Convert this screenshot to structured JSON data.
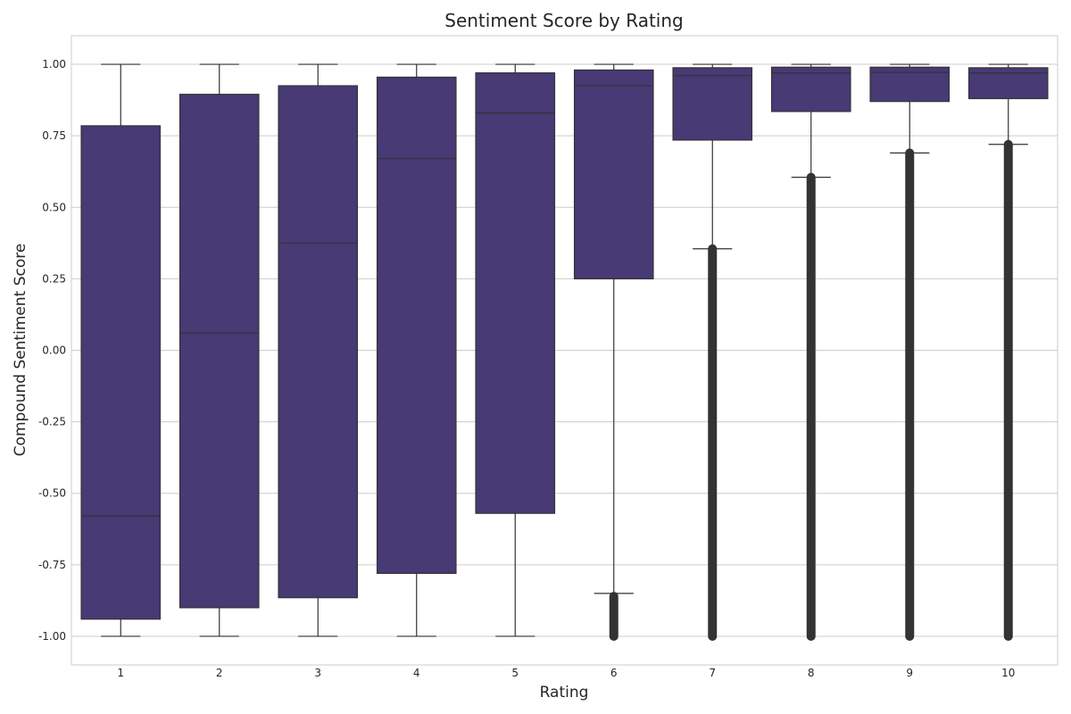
{
  "chart_data": {
    "type": "box",
    "title": "Sentiment Score by Rating",
    "xlabel": "Rating",
    "ylabel": "Compound Sentiment Score",
    "ylim": [
      -1.1,
      1.1
    ],
    "yticks": [
      "1.00",
      "0.75",
      "0.50",
      "0.25",
      "0.00",
      "-0.25",
      "-0.50",
      "-0.75",
      "-1.00"
    ],
    "ytick_values": [
      1.0,
      0.75,
      0.5,
      0.25,
      0.0,
      -0.25,
      -0.5,
      -0.75,
      -1.0
    ],
    "categories": [
      "1",
      "2",
      "3",
      "4",
      "5",
      "6",
      "7",
      "8",
      "9",
      "10"
    ],
    "grid": true,
    "box_color": "#473a75",
    "line_color": "#333333",
    "boxes": [
      {
        "category": "1",
        "whisker_low": -1.0,
        "q1": -0.94,
        "median": -0.58,
        "q3": 0.785,
        "whisker_high": 1.0,
        "outliers_low": null,
        "outliers_high": null
      },
      {
        "category": "2",
        "whisker_low": -1.0,
        "q1": -0.9,
        "median": 0.06,
        "q3": 0.895,
        "whisker_high": 1.0,
        "outliers_low": null,
        "outliers_high": null
      },
      {
        "category": "3",
        "whisker_low": -1.0,
        "q1": -0.865,
        "median": 0.375,
        "q3": 0.925,
        "whisker_high": 1.0,
        "outliers_low": null,
        "outliers_high": null
      },
      {
        "category": "4",
        "whisker_low": -1.0,
        "q1": -0.78,
        "median": 0.67,
        "q3": 0.955,
        "whisker_high": 1.0,
        "outliers_low": null,
        "outliers_high": null
      },
      {
        "category": "5",
        "whisker_low": -1.0,
        "q1": -0.57,
        "median": 0.83,
        "q3": 0.97,
        "whisker_high": 1.0,
        "outliers_low": null,
        "outliers_high": null
      },
      {
        "category": "6",
        "whisker_low": -0.85,
        "q1": 0.25,
        "median": 0.925,
        "q3": 0.98,
        "whisker_high": 1.0,
        "outliers_low": [
          -1.0,
          -0.86
        ],
        "outliers_high": null
      },
      {
        "category": "7",
        "whisker_low": 0.355,
        "q1": 0.735,
        "median": 0.96,
        "q3": 0.988,
        "whisker_high": 1.0,
        "outliers_low": [
          -1.0,
          0.355
        ],
        "outliers_high": null
      },
      {
        "category": "8",
        "whisker_low": 0.605,
        "q1": 0.835,
        "median": 0.97,
        "q3": 0.99,
        "whisker_high": 1.0,
        "outliers_low": [
          -1.0,
          0.605
        ],
        "outliers_high": null
      },
      {
        "category": "9",
        "whisker_low": 0.69,
        "q1": 0.87,
        "median": 0.972,
        "q3": 0.99,
        "whisker_high": 1.0,
        "outliers_low": [
          -1.0,
          0.69
        ],
        "outliers_high": null
      },
      {
        "category": "10",
        "whisker_low": 0.72,
        "q1": 0.88,
        "median": 0.97,
        "q3": 0.988,
        "whisker_high": 1.0,
        "outliers_low": [
          -1.0,
          0.72
        ],
        "outliers_high": null
      }
    ]
  }
}
